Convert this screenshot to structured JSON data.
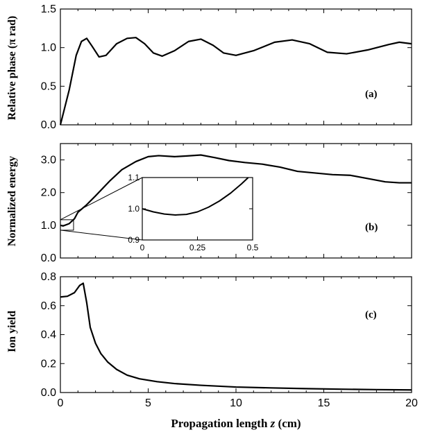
{
  "chart_data": [
    {
      "type": "line",
      "panel_label": "(a)",
      "ylabel": "Relative phase (π rad)",
      "xlim": [
        0,
        20
      ],
      "ylim": [
        0,
        1.5
      ],
      "yticks": [
        "0.0",
        "0.5",
        "1.0",
        "1.5"
      ],
      "series": [
        {
          "x": [
            0,
            0.5,
            0.9,
            1.2,
            1.5,
            1.8,
            2.2,
            2.6,
            3.2,
            3.8,
            4.3,
            4.8,
            5.3,
            5.8,
            6.5,
            7.3,
            8.0,
            8.7,
            9.3,
            10.0,
            11.0,
            12.2,
            13.2,
            14.2,
            15.2,
            16.3,
            17.5,
            18.7,
            19.3,
            20.0
          ],
          "y": [
            0.0,
            0.45,
            0.9,
            1.08,
            1.12,
            1.02,
            0.88,
            0.9,
            1.05,
            1.12,
            1.13,
            1.05,
            0.93,
            0.89,
            0.96,
            1.08,
            1.11,
            1.03,
            0.93,
            0.9,
            0.96,
            1.07,
            1.1,
            1.05,
            0.94,
            0.92,
            0.97,
            1.04,
            1.07,
            1.05
          ]
        }
      ]
    },
    {
      "type": "line",
      "panel_label": "(b)",
      "ylabel": "Normalized energy",
      "xlim": [
        0,
        20
      ],
      "ylim": [
        0,
        3.5
      ],
      "yticks": [
        "0.0",
        "1.0",
        "2.0",
        "3.0"
      ],
      "series": [
        {
          "x": [
            0,
            0.15,
            0.5,
            0.8,
            1.0,
            1.5,
            2.0,
            2.8,
            3.5,
            4.3,
            5.0,
            5.6,
            6.5,
            7.2,
            8.0,
            8.8,
            9.6,
            10.5,
            11.5,
            12.5,
            13.5,
            14.5,
            15.5,
            16.5,
            17.5,
            18.5,
            19.3,
            20.0
          ],
          "y": [
            1.0,
            0.98,
            1.05,
            1.2,
            1.4,
            1.63,
            1.9,
            2.35,
            2.7,
            2.95,
            3.1,
            3.13,
            3.1,
            3.12,
            3.15,
            3.07,
            2.98,
            2.92,
            2.87,
            2.78,
            2.65,
            2.6,
            2.55,
            2.53,
            2.43,
            2.33,
            2.3,
            2.3
          ]
        }
      ],
      "inset": {
        "xlim": [
          0,
          0.5
        ],
        "ylim": [
          0.9,
          1.1
        ],
        "xticks": [
          "0",
          "0.25",
          "0.5"
        ],
        "yticks": [
          "0.9",
          "1.0",
          "1.1"
        ],
        "series": [
          {
            "x": [
              0,
              0.05,
              0.1,
              0.15,
              0.2,
              0.25,
              0.3,
              0.35,
              0.4,
              0.45,
              0.48
            ],
            "y": [
              1.0,
              0.99,
              0.983,
              0.98,
              0.982,
              0.99,
              1.005,
              1.025,
              1.05,
              1.08,
              1.1
            ]
          }
        ]
      }
    },
    {
      "type": "line",
      "panel_label": "(c)",
      "ylabel": "Ion yield",
      "xlabel": "Propagation length z (cm)",
      "xlim": [
        0,
        20
      ],
      "ylim": [
        0,
        0.8
      ],
      "xticks": [
        "0",
        "5",
        "10",
        "15",
        "20"
      ],
      "yticks": [
        "0.0",
        "0.2",
        "0.4",
        "0.6",
        "0.8"
      ],
      "series": [
        {
          "x": [
            0,
            0.4,
            0.8,
            1.1,
            1.3,
            1.5,
            1.7,
            2.0,
            2.3,
            2.7,
            3.2,
            3.8,
            4.5,
            5.5,
            6.5,
            8.0,
            10.0,
            12.0,
            14.0,
            16.0,
            18.0,
            20.0
          ],
          "y": [
            0.66,
            0.665,
            0.69,
            0.74,
            0.755,
            0.62,
            0.45,
            0.34,
            0.27,
            0.21,
            0.16,
            0.12,
            0.095,
            0.075,
            0.062,
            0.05,
            0.038,
            0.032,
            0.027,
            0.023,
            0.02,
            0.018
          ]
        }
      ]
    }
  ],
  "labels": {
    "ylabel_a": "Relative phase (π rad)",
    "ylabel_b": "Normalized energy",
    "ylabel_c": "Ion yield",
    "xlabel_main": "Propagation length ",
    "xlabel_var": "z",
    "xlabel_unit": " (cm)",
    "tag_a": "(a)",
    "tag_b": "(b)",
    "tag_c": "(c)"
  }
}
